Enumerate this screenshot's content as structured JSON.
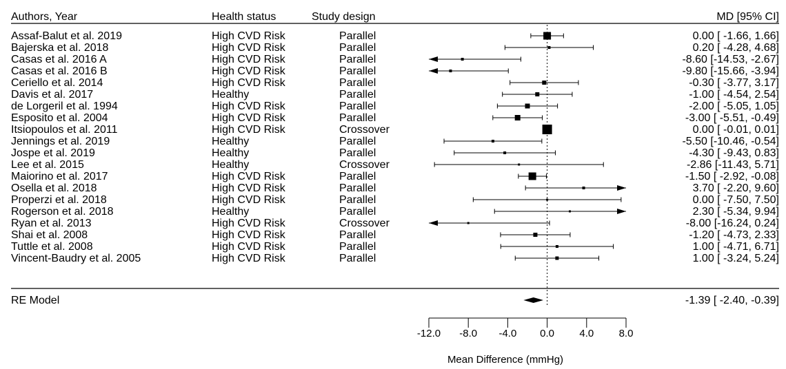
{
  "chart_data": {
    "type": "forest",
    "headers": {
      "authors": "Authors, Year",
      "health": "Health status",
      "design": "Study design",
      "effect": "MD [95% CI]"
    },
    "xlabel": "Mean Difference (mmHg)",
    "xlim": [
      -12,
      8
    ],
    "xticks": [
      "-12.0",
      "-8.0",
      "-4.0",
      "0.0",
      "4.0",
      "8.0"
    ],
    "reference_line": 0,
    "studies": [
      {
        "author": "Assaf-Balut et al. 2019",
        "health": "High CVD Risk",
        "design": "Parallel",
        "md": 0.0,
        "lo": -1.66,
        "hi": 1.66,
        "label": "0.00 [ -1.66, 1.66]",
        "weight": 11
      },
      {
        "author": "Bajerska et al. 2018",
        "health": "High CVD Risk",
        "design": "Parallel",
        "md": 0.2,
        "lo": -4.28,
        "hi": 4.68,
        "label": "0.20 [ -4.28, 4.68]",
        "weight": 4
      },
      {
        "author": "Casas et al. 2016 A",
        "health": "High CVD Risk",
        "design": "Parallel",
        "md": -8.6,
        "lo": -14.53,
        "hi": -2.67,
        "label": "-8.60 [-14.53, -2.67]",
        "weight": 4
      },
      {
        "author": "Casas et al. 2016 B",
        "health": "High CVD Risk",
        "design": "Parallel",
        "md": -9.8,
        "lo": -15.66,
        "hi": -3.94,
        "label": "-9.80 [-15.66, -3.94]",
        "weight": 4
      },
      {
        "author": "Ceriello et al. 2014",
        "health": "High CVD Risk",
        "design": "Parallel",
        "md": -0.3,
        "lo": -3.77,
        "hi": 3.17,
        "label": "-0.30 [ -3.77, 3.17]",
        "weight": 6
      },
      {
        "author": "Davis et al. 2017",
        "health": "Healthy",
        "design": "Parallel",
        "md": -1.0,
        "lo": -4.54,
        "hi": 2.54,
        "label": "-1.00 [ -4.54, 2.54]",
        "weight": 6
      },
      {
        "author": "de Lorgeril et al. 1994",
        "health": "High CVD Risk",
        "design": "Parallel",
        "md": -2.0,
        "lo": -5.05,
        "hi": 1.05,
        "label": "-2.00 [ -5.05, 1.05]",
        "weight": 7
      },
      {
        "author": "Esposito et al. 2004",
        "health": "High CVD Risk",
        "design": "Parallel",
        "md": -3.0,
        "lo": -5.51,
        "hi": -0.49,
        "label": "-3.00 [ -5.51, -0.49]",
        "weight": 8
      },
      {
        "author": "Itsiopoulos et al. 2011",
        "health": "High CVD Risk",
        "design": "Crossover",
        "md": 0.0,
        "lo": -0.01,
        "hi": 0.01,
        "label": "0.00 [ -0.01, 0.01]",
        "weight": 14
      },
      {
        "author": "Jennings et al. 2019",
        "health": "Healthy",
        "design": "Parallel",
        "md": -5.5,
        "lo": -10.46,
        "hi": -0.54,
        "label": "-5.50 [-10.46, -0.54]",
        "weight": 4
      },
      {
        "author": "Jospe et al. 2019",
        "health": "Healthy",
        "design": "Parallel",
        "md": -4.3,
        "lo": -9.43,
        "hi": 0.83,
        "label": "-4.30 [ -9.43, 0.83]",
        "weight": 4
      },
      {
        "author": "Lee et al. 2015",
        "health": "Healthy",
        "design": "Crossover",
        "md": -2.86,
        "lo": -11.43,
        "hi": 5.71,
        "label": "-2.86 [-11.43, 5.71]",
        "weight": 3
      },
      {
        "author": "Maiorino et al. 2017",
        "health": "High CVD Risk",
        "design": "Parallel",
        "md": -1.5,
        "lo": -2.92,
        "hi": -0.08,
        "label": "-1.50 [ -2.92, -0.08]",
        "weight": 11
      },
      {
        "author": "Osella et al. 2018",
        "health": "High CVD Risk",
        "design": "Parallel",
        "md": 3.7,
        "lo": -2.2,
        "hi": 9.6,
        "label": "3.70 [ -2.20, 9.60]",
        "weight": 4
      },
      {
        "author": "Properzi et al. 2018",
        "health": "High CVD Risk",
        "design": "Parallel",
        "md": 0.0,
        "lo": -7.5,
        "hi": 7.5,
        "label": "0.00 [ -7.50, 7.50]",
        "weight": 3
      },
      {
        "author": "Rogerson et al. 2018",
        "health": "Healthy",
        "design": "Parallel",
        "md": 2.3,
        "lo": -5.34,
        "hi": 9.94,
        "label": "2.30 [ -5.34, 9.94]",
        "weight": 3
      },
      {
        "author": "Ryan et al. 2013",
        "health": "High CVD Risk",
        "design": "Crossover",
        "md": -8.0,
        "lo": -16.24,
        "hi": 0.24,
        "label": "-8.00 [-16.24, 0.24]",
        "weight": 3
      },
      {
        "author": "Shai et al. 2008",
        "health": "High CVD Risk",
        "design": "Parallel",
        "md": -1.2,
        "lo": -4.73,
        "hi": 2.33,
        "label": "-1.20 [ -4.73, 2.33]",
        "weight": 6
      },
      {
        "author": "Tuttle et al. 2008",
        "health": "High CVD Risk",
        "design": "Parallel",
        "md": 1.0,
        "lo": -4.71,
        "hi": 6.71,
        "label": "1.00 [ -4.71, 6.71]",
        "weight": 4
      },
      {
        "author": "Vincent-Baudry et al. 2005",
        "health": "High CVD Risk",
        "design": "Parallel",
        "md": 1.0,
        "lo": -3.24,
        "hi": 5.24,
        "label": "1.00 [ -3.24, 5.24]",
        "weight": 5
      }
    ],
    "summary": {
      "label": "RE Model",
      "md": -1.39,
      "lo": -2.4,
      "hi": -0.39,
      "text": "-1.39 [ -2.40, -0.39]"
    }
  }
}
